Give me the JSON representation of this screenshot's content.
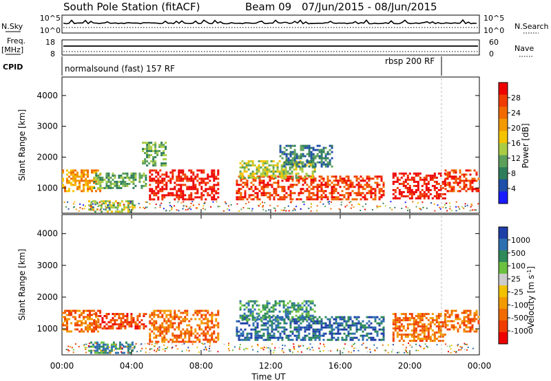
{
  "header": {
    "station": "South Pole Station (fitACF)",
    "beam": "Beam 09",
    "date_range": "07/Jun/2015 - 08/Jun/2015"
  },
  "strips": {
    "nsky_label": "N.Sky",
    "nsearch_label": "N.Search",
    "nsky_ticks": [
      "10^5",
      "10^0"
    ],
    "nsearch_ticks": [
      "10^5",
      "10^0"
    ],
    "freq_label_1": "Freq.",
    "freq_label_2": "[MHz]",
    "freq_ticks": [
      "18",
      "8"
    ],
    "nave_label": "Nave",
    "nave_ticks": [
      "60",
      "0"
    ],
    "cpid_label": "CPID",
    "cpid_modes": [
      "normalsound (fast) 157 RF",
      "rbsp 200 RF"
    ]
  },
  "chart_data": [
    {
      "type": "heatmap",
      "panel": "power",
      "ylabel": "Slant Range [km]",
      "ylim": [
        180,
        4600
      ],
      "yticks": [
        "1000",
        "2000",
        "3000",
        "4000"
      ],
      "xlim": [
        0,
        24
      ],
      "colorbar_label": "Power [dB]",
      "colorbar_ticks": [
        "4",
        "8",
        "12",
        "16",
        "20",
        "24",
        "28"
      ],
      "colors": [
        "#1a1aff",
        "#1f4fa8",
        "#2e7d5a",
        "#5ca05a",
        "#aacc44",
        "#f5c400",
        "#f29a00",
        "#f06a00",
        "#f03c00",
        "#ee0000"
      ],
      "regions": [
        {
          "t0": 0.0,
          "t1": 2.2,
          "r0": 900,
          "r1": 1600,
          "level": 6
        },
        {
          "t0": 1.8,
          "t1": 4.8,
          "r0": 1000,
          "r1": 1500,
          "level": 3
        },
        {
          "t0": 1.5,
          "t1": 4.2,
          "r0": 250,
          "r1": 600,
          "level": 4
        },
        {
          "t0": 5.0,
          "t1": 9.0,
          "r0": 600,
          "r1": 1600,
          "level": 9
        },
        {
          "t0": 4.6,
          "t1": 6.0,
          "r0": 1700,
          "r1": 2500,
          "level": 3
        },
        {
          "t0": 10.0,
          "t1": 18.5,
          "r0": 650,
          "r1": 1400,
          "level": 8
        },
        {
          "t0": 10.2,
          "t1": 14.5,
          "r0": 1300,
          "r1": 1900,
          "level": 4
        },
        {
          "t0": 12.5,
          "t1": 15.5,
          "r0": 1700,
          "r1": 2400,
          "level": 2
        },
        {
          "t0": 19.0,
          "t1": 22.0,
          "r0": 650,
          "r1": 1500,
          "level": 9
        },
        {
          "t0": 22.0,
          "t1": 24.0,
          "r0": 900,
          "r1": 1600,
          "level": 8
        }
      ]
    },
    {
      "type": "heatmap",
      "panel": "velocity",
      "ylabel": "Slant Range [km]",
      "ylim": [
        180,
        4600
      ],
      "yticks": [
        "1000",
        "2000",
        "3000",
        "4000"
      ],
      "xlim": [
        0,
        24
      ],
      "xticks": [
        "00:00",
        "04:00",
        "08:00",
        "12:00",
        "16:00",
        "20:00",
        "00:00"
      ],
      "xlabel": "Time UT",
      "colorbar_label": "Velocity [m s^-1]",
      "colorbar_ticks": [
        "1000",
        "500",
        "100",
        "25",
        "-25",
        "-100",
        "-500",
        "-1000"
      ],
      "colors": [
        "#1f3fa8",
        "#2e6fb0",
        "#2e8a5a",
        "#6cc040",
        "#cccccc",
        "#f2c200",
        "#f29a00",
        "#f06a00",
        "#f03c00",
        "#ee0000"
      ],
      "regions": [
        {
          "t0": 0.0,
          "t1": 2.2,
          "r0": 900,
          "r1": 1600,
          "level": 7
        },
        {
          "t0": 1.8,
          "t1": 4.8,
          "r0": 1000,
          "r1": 1500,
          "level": 8
        },
        {
          "t0": 1.5,
          "t1": 4.2,
          "r0": 250,
          "r1": 600,
          "level": 2
        },
        {
          "t0": 5.0,
          "t1": 9.0,
          "r0": 600,
          "r1": 1600,
          "level": 7
        },
        {
          "t0": 10.0,
          "t1": 18.5,
          "r0": 650,
          "r1": 1400,
          "level": 1
        },
        {
          "t0": 10.2,
          "t1": 14.5,
          "r0": 1300,
          "r1": 1900,
          "level": 2
        },
        {
          "t0": 19.0,
          "t1": 22.0,
          "r0": 650,
          "r1": 1500,
          "level": 7
        },
        {
          "t0": 22.0,
          "t1": 24.0,
          "r0": 900,
          "r1": 1600,
          "level": 7
        }
      ]
    }
  ]
}
